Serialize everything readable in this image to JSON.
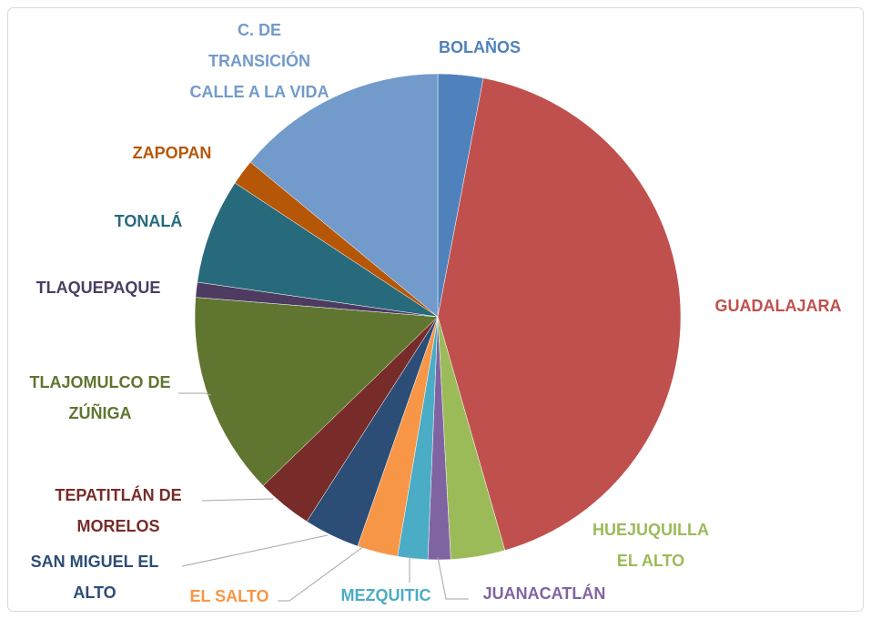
{
  "chart_data": {
    "type": "pie",
    "categories": [
      "BOLAÑOS",
      "GUADALAJARA",
      "HUEJUQUILLA EL ALTO",
      "JUANACATLÁN",
      "MEZQUITIC",
      "EL SALTO",
      "SAN MIGUEL EL ALTO",
      "TEPATITLÁN DE MORELOS",
      "TLAJOMULCO DE ZÚÑIGA",
      "TLAQUEPAQUE",
      "TONALÁ",
      "ZAPOPAN",
      "C. DE TRANSICIÓN CALLE A LA VIDA"
    ],
    "values": [
      3,
      42.5,
      3.6,
      1.5,
      2,
      2.7,
      3.7,
      3.7,
      13.5,
      1,
      7,
      1.7,
      14
    ],
    "colors": [
      "#4f81bd",
      "#c0504d",
      "#9bbb59",
      "#8064a2",
      "#4bacc6",
      "#f79646",
      "#2c4d75",
      "#772c2a",
      "#5f7530",
      "#4d3b62",
      "#276a7c",
      "#b65708",
      "#729aca"
    ]
  }
}
